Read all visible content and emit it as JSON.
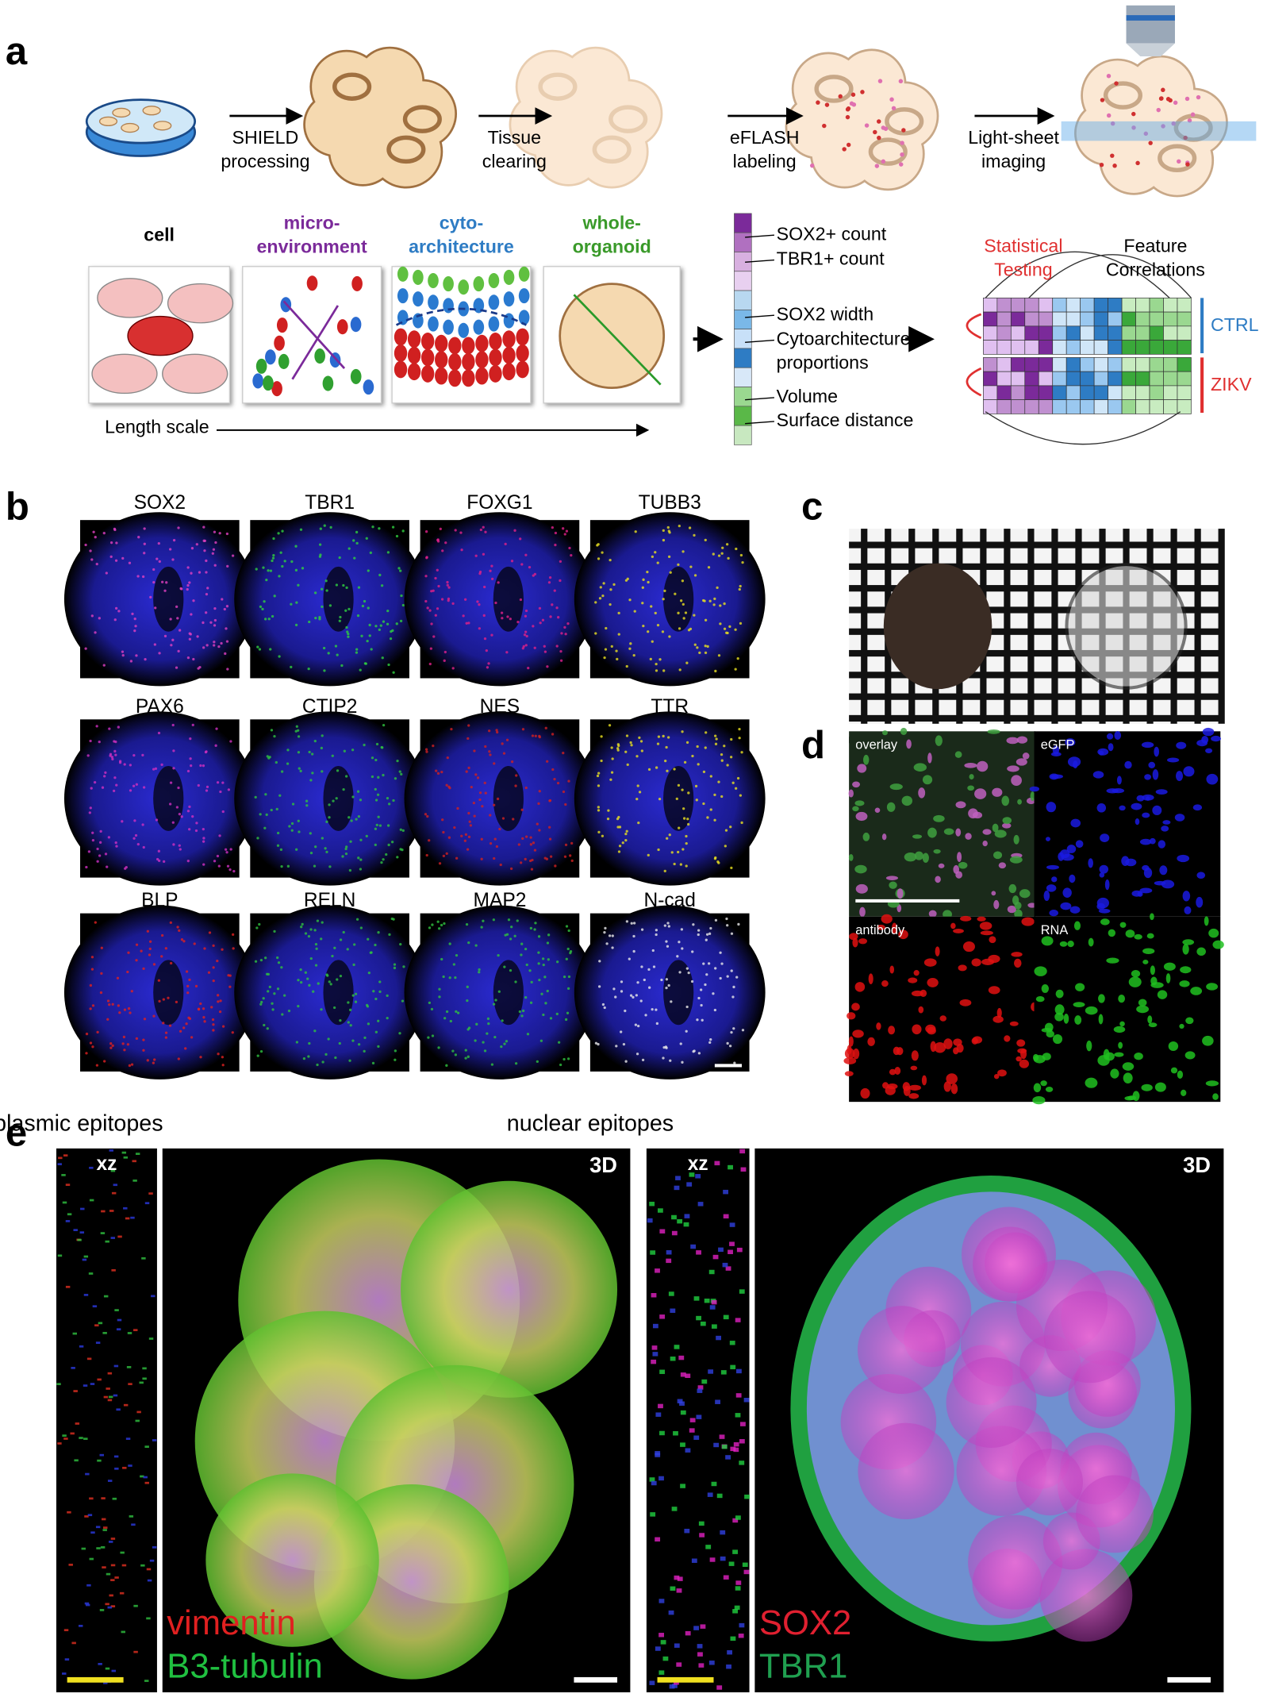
{
  "panel_a": {
    "label": "a",
    "steps": [
      [
        "SHIELD",
        "processing"
      ],
      [
        "Tissue",
        "clearing"
      ],
      [
        "eFLASH",
        "labeling"
      ],
      [
        "Light-sheet",
        "imaging"
      ]
    ],
    "scales": [
      [
        "cell"
      ],
      [
        "micro-",
        "environment"
      ],
      [
        "cyto-",
        "architecture"
      ],
      [
        "whole-",
        "organoid"
      ]
    ],
    "length_scale": "Length scale",
    "features": [
      [
        "SOX2+ count"
      ],
      [
        "TBR1+ count"
      ],
      [
        "SOX2 width"
      ],
      [
        "Cytoarchitecture",
        "proportions"
      ],
      [
        "Volume"
      ],
      [
        "Surface distance"
      ]
    ],
    "statistical": [
      "Statistical",
      "Testing"
    ],
    "correlations": [
      "Feature",
      "Correlations"
    ],
    "groups": [
      "CTRL",
      "ZIKV"
    ]
  },
  "panel_b": {
    "label": "b",
    "markers": [
      "SOX2",
      "TBR1",
      "FOXG1",
      "TUBB3",
      "PAX6",
      "CTIP2",
      "NES",
      "TTR",
      "BLP",
      "RELN",
      "MAP2",
      "N-cad"
    ]
  },
  "panel_c": {
    "label": "c"
  },
  "panel_d": {
    "label": "d",
    "channels": [
      "overlay",
      "eGFP",
      "antibody",
      "RNA"
    ]
  },
  "panel_e": {
    "label": "e",
    "left": {
      "title": "cytoplasmic epitopes",
      "xz": "xz",
      "view": "3D",
      "stains": [
        "vimentin",
        "B3-tubulin"
      ]
    },
    "right": {
      "title": "nuclear epitopes",
      "xz": "xz",
      "view": "3D",
      "stains": [
        "SOX2",
        "TBR1"
      ]
    }
  }
}
